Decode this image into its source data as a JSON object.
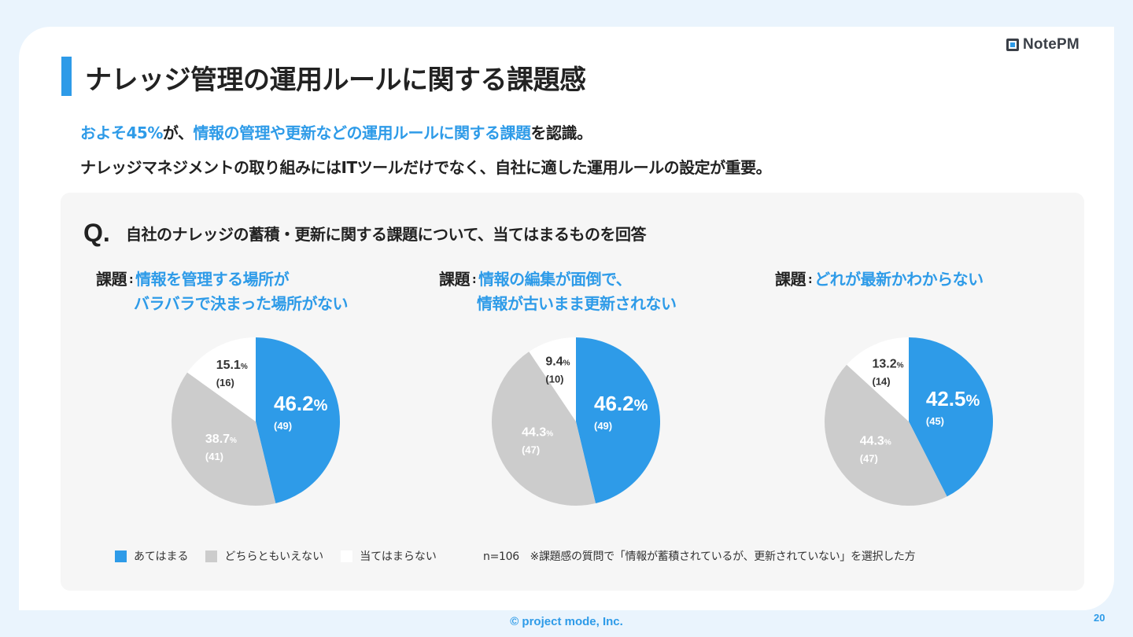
{
  "title": "ナレッジ管理の運用ルールに関する課題感",
  "logo_text": "NotePM",
  "lead": {
    "line1_hl1": "およそ45%",
    "line1_t1": "が、",
    "line1_hl2": "情報の管理や更新などの運用ルールに関する課題",
    "line1_t2": "を認識。",
    "line2": "ナレッジマネジメントの取り組みにはITツールだけでなく、自社に適した運用ルールの設定が重要。"
  },
  "question": {
    "mark": "Q.",
    "text": "自社のナレッジの蓄積・更新に関する課題について、当てはまるものを回答"
  },
  "issue_label": "課題",
  "issue_sep": ":",
  "colors": {
    "applies": "#2e9be8",
    "neutral": "#cccccc",
    "not_applies": "#ffffff",
    "accent": "#2e9be8"
  },
  "chart_data": [
    {
      "type": "pie",
      "title_line1": "情報を管理する場所が",
      "title_line2": "バラバラで決まった場所がない",
      "categories": [
        "あてはまる",
        "どちらともいえない",
        "当てはまらない"
      ],
      "values": [
        46.2,
        38.7,
        15.1
      ],
      "counts": [
        "(49)",
        "(41)",
        "(16)"
      ],
      "labels": [
        "46.2",
        "38.7",
        "15.1"
      ]
    },
    {
      "type": "pie",
      "title_line1": "情報の編集が面倒で、",
      "title_line2": "情報が古いまま更新されない",
      "categories": [
        "あてはまる",
        "どちらともいえない",
        "当てはまらない"
      ],
      "values": [
        46.2,
        44.3,
        9.4
      ],
      "counts": [
        "(49)",
        "(47)",
        "(10)"
      ],
      "labels": [
        "46.2",
        "44.3",
        "9.4"
      ]
    },
    {
      "type": "pie",
      "title_line1": "どれが最新かわからない",
      "title_line2": "",
      "categories": [
        "あてはまる",
        "どちらともいえない",
        "当てはまらない"
      ],
      "values": [
        42.5,
        44.3,
        13.2
      ],
      "counts": [
        "(45)",
        "(47)",
        "(14)"
      ],
      "labels": [
        "42.5",
        "44.3",
        "13.2"
      ]
    }
  ],
  "percent_sign": "%",
  "legend": [
    "あてはまる",
    "どちらともいえない",
    "当てはまらない"
  ],
  "note": "n=106　※課題感の質問で「情報が蓄積されているが、更新されていない」を選択した方",
  "footer": "© project mode, Inc.",
  "page_number": "20"
}
